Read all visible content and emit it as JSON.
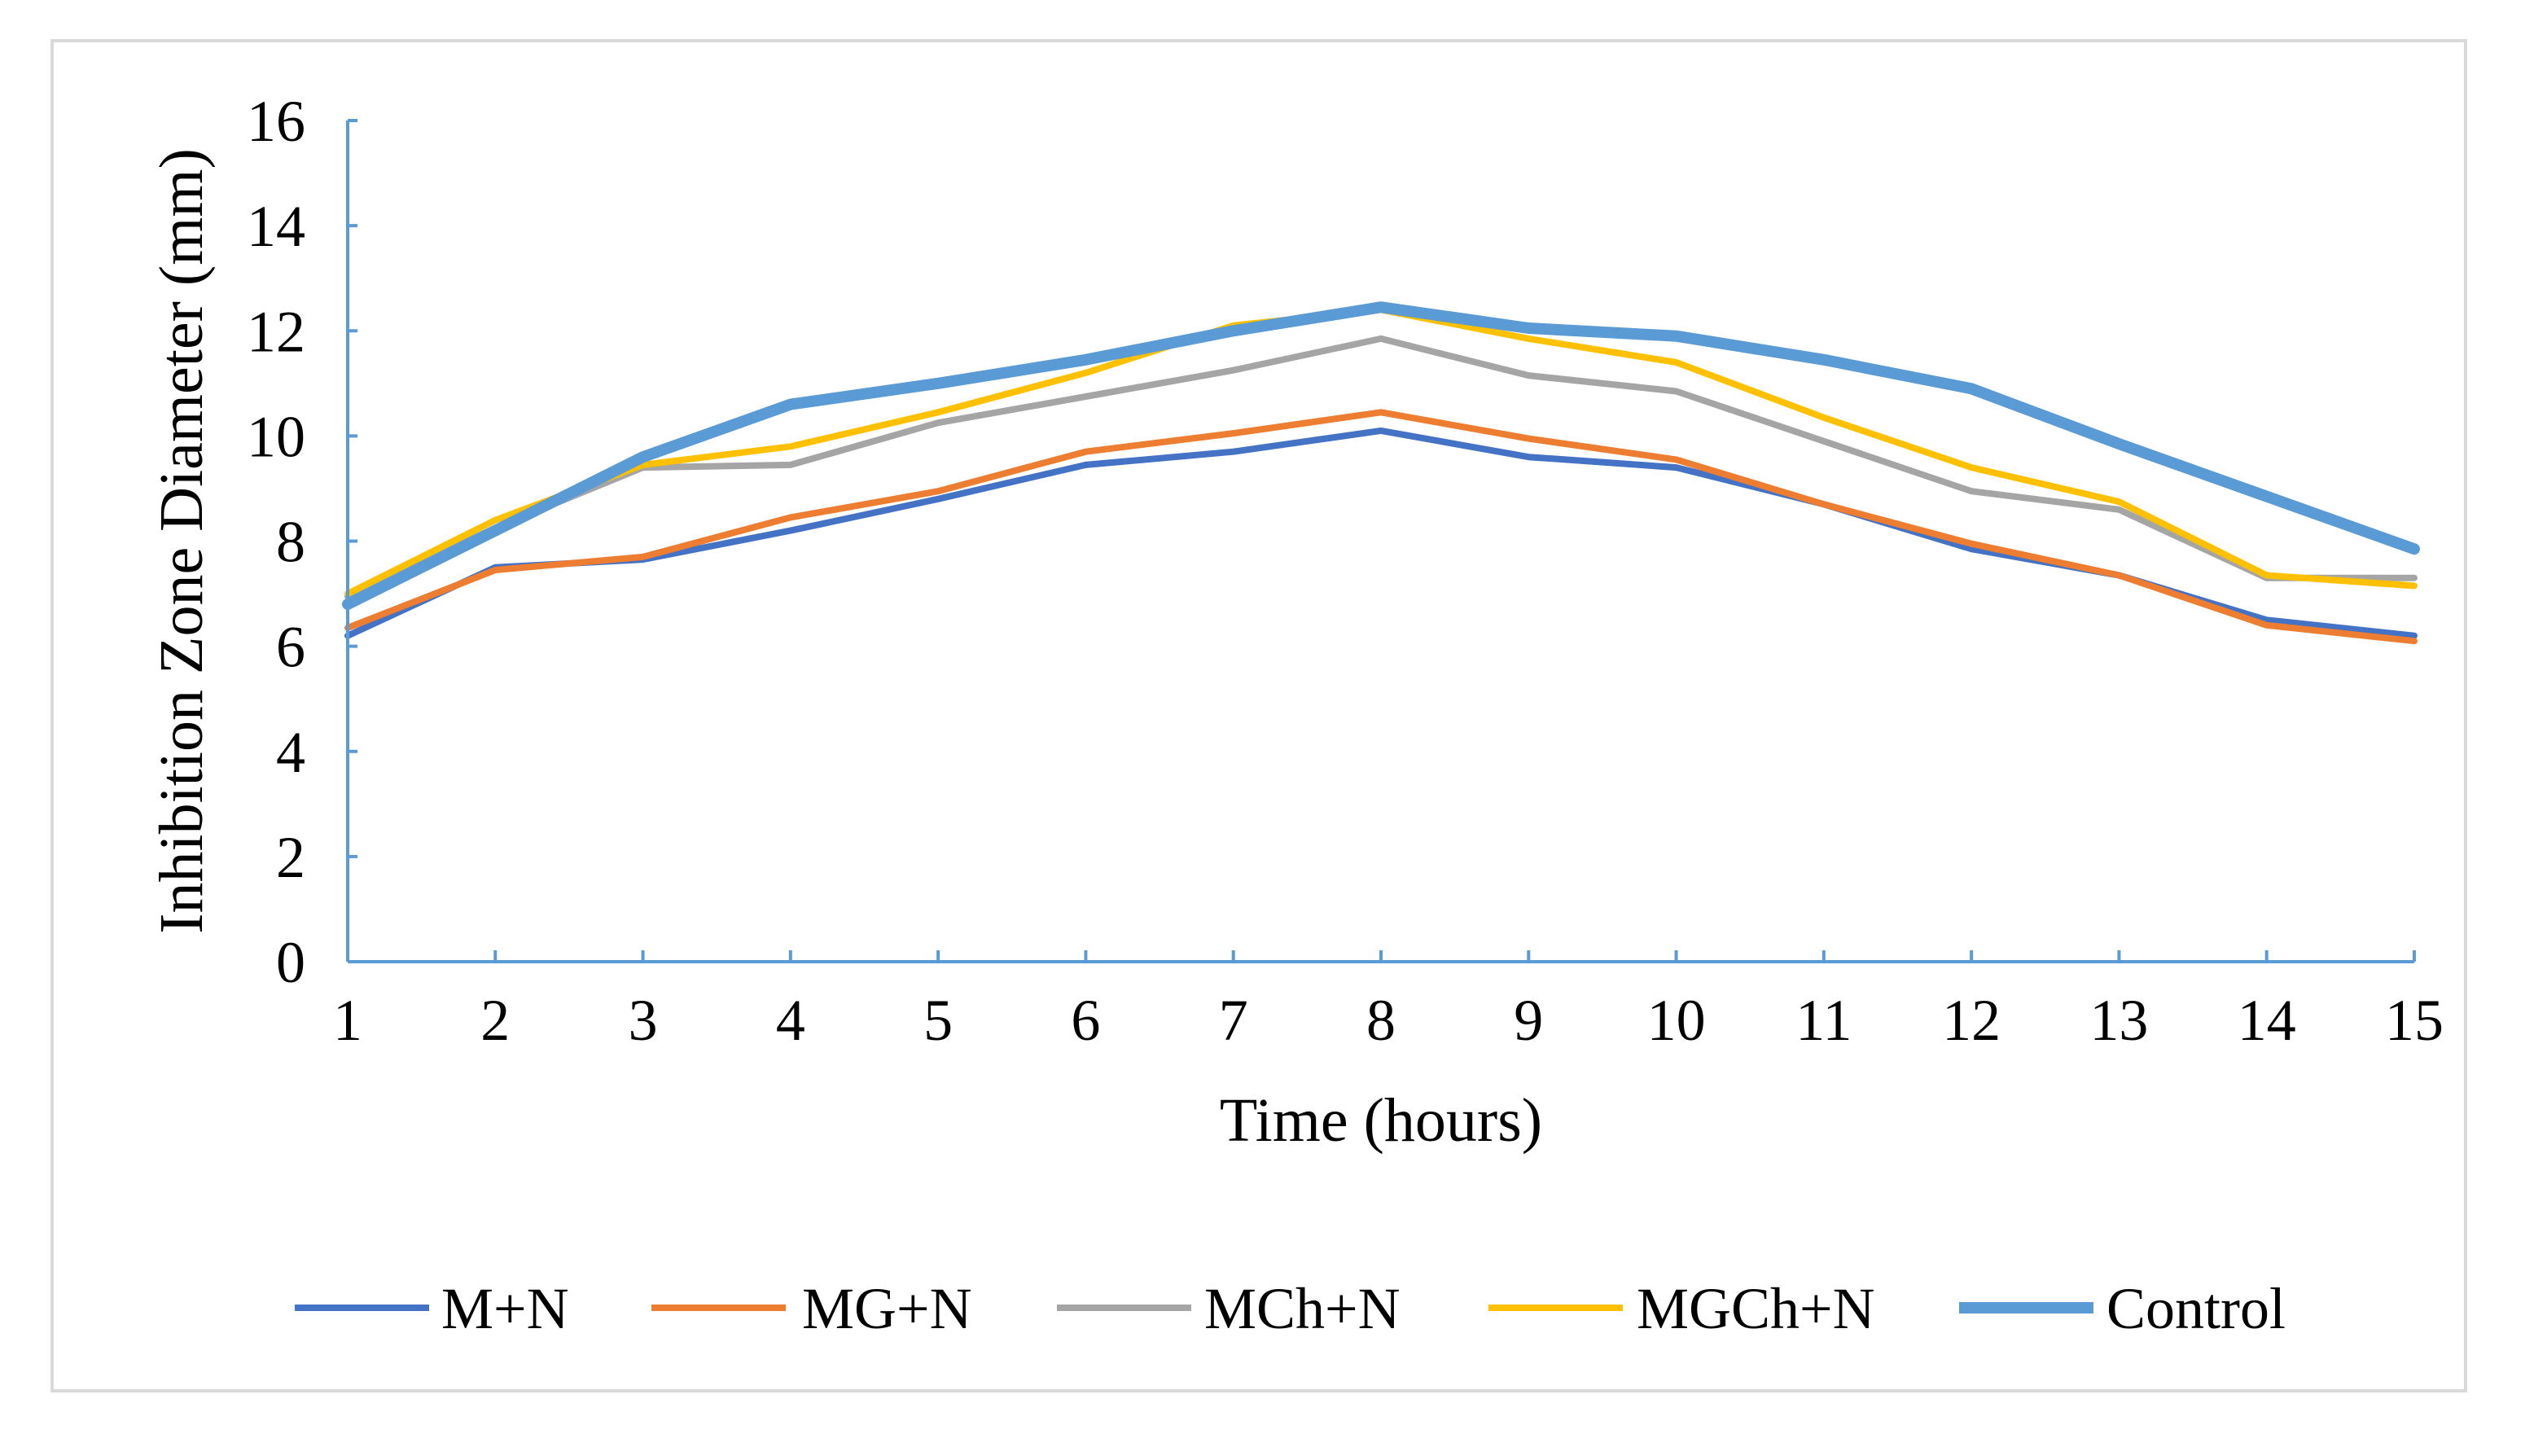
{
  "chart_data": {
    "type": "line",
    "title": "",
    "xlabel": "Time (hours)",
    "ylabel": "Inhibition Zone Diameter (mm)",
    "x": [
      1,
      2,
      3,
      4,
      5,
      6,
      7,
      8,
      9,
      10,
      11,
      12,
      13,
      14,
      15
    ],
    "xlim": [
      1,
      15
    ],
    "ylim": [
      0,
      16
    ],
    "y_ticks": [
      "0",
      "2",
      "4",
      "6",
      "8",
      "10",
      "12",
      "14",
      "16"
    ],
    "x_ticks": [
      "1",
      "2",
      "3",
      "4",
      "5",
      "6",
      "7",
      "8",
      "9",
      "10",
      "11",
      "12",
      "13",
      "14",
      "15"
    ],
    "grid": false,
    "legend_position": "bottom",
    "axis_color": "#5b9bd5",
    "series": [
      {
        "name": "M+N",
        "color": "#4472c4",
        "values": [
          6.2,
          7.5,
          7.65,
          8.2,
          8.8,
          9.45,
          9.7,
          10.1,
          9.6,
          9.4,
          8.7,
          7.85,
          7.35,
          6.5,
          6.2
        ]
      },
      {
        "name": "MG+N",
        "color": "#ed7d31",
        "values": [
          6.35,
          7.45,
          7.7,
          8.45,
          8.95,
          9.7,
          10.05,
          10.45,
          9.95,
          9.55,
          8.7,
          7.95,
          7.35,
          6.4,
          6.1
        ]
      },
      {
        "name": "MCh+N",
        "color": "#a5a5a5",
        "values": [
          6.95,
          8.25,
          9.4,
          9.45,
          10.25,
          10.75,
          11.25,
          11.85,
          11.15,
          10.85,
          9.9,
          8.95,
          8.6,
          7.3,
          7.3
        ]
      },
      {
        "name": "MGCh+N",
        "color": "#ffc000",
        "values": [
          7.0,
          8.4,
          9.45,
          9.8,
          10.45,
          11.2,
          12.1,
          12.4,
          11.85,
          11.4,
          10.35,
          9.4,
          8.75,
          7.35,
          7.15
        ]
      },
      {
        "name": "Control",
        "color": "#5b9bd5",
        "values": [
          6.8,
          8.2,
          9.6,
          10.6,
          11.0,
          11.45,
          12.0,
          12.45,
          12.05,
          11.9,
          11.45,
          10.9,
          9.85,
          8.85,
          7.85
        ]
      }
    ]
  }
}
